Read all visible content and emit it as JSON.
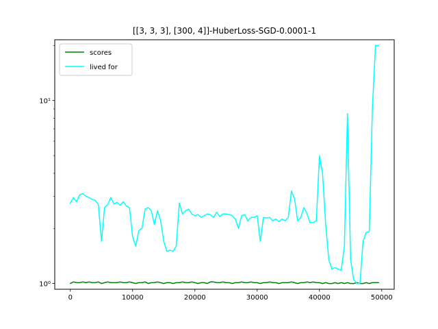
{
  "chart_data": {
    "type": "line",
    "title": "[[3, 3, 3], [300, 4]]-HuberLoss-SGD-0.0001-1",
    "xlabel": "",
    "ylabel": "",
    "xlim": [
      -2500,
      52000
    ],
    "ylim": [
      0.93,
      21.5
    ],
    "yscale": "log",
    "x_ticks": [
      0,
      10000,
      20000,
      30000,
      40000,
      50000
    ],
    "x_tick_labels": [
      "0",
      "10000",
      "20000",
      "30000",
      "40000",
      "50000"
    ],
    "y_ticks": [
      1,
      10
    ],
    "y_tick_labels": [
      "10⁰",
      "10¹"
    ],
    "grid": false,
    "legend_position": "top-left",
    "legend": [
      "scores",
      "lived for"
    ],
    "series": [
      {
        "name": "scores",
        "color": "#008000",
        "x": [
          0,
          500,
          1000,
          1500,
          2000,
          2500,
          3000,
          3500,
          4000,
          4500,
          5000,
          5500,
          6000,
          6500,
          7000,
          7500,
          8000,
          8500,
          9000,
          9500,
          10000,
          10500,
          11000,
          11500,
          12000,
          12500,
          13000,
          13500,
          14000,
          14500,
          15000,
          15500,
          16000,
          16500,
          17000,
          17500,
          18000,
          18500,
          19000,
          19500,
          20000,
          20500,
          21000,
          21500,
          22000,
          22500,
          23000,
          23500,
          24000,
          24500,
          25000,
          25500,
          26000,
          26500,
          27000,
          27500,
          28000,
          28500,
          29000,
          29500,
          30000,
          30500,
          31000,
          31500,
          32000,
          32500,
          33000,
          33500,
          34000,
          34500,
          35000,
          35500,
          36000,
          36500,
          37000,
          37500,
          38000,
          38500,
          39000,
          39500,
          40000,
          40500,
          41000,
          41500,
          42000,
          42500,
          43000,
          43500,
          44000,
          44500,
          45000,
          45500,
          46000,
          46500,
          47000,
          47500,
          48000,
          48500,
          49000,
          49500
        ],
        "values": [
          1.0,
          1.02,
          1.01,
          1.01,
          1.02,
          1.01,
          1.02,
          1.01,
          1.01,
          1.02,
          1.0,
          1.01,
          1.02,
          1.01,
          1.01,
          1.01,
          1.02,
          1.01,
          1.01,
          1.02,
          1.01,
          1.0,
          1.01,
          1.01,
          1.02,
          1.0,
          1.01,
          1.01,
          1.02,
          1.01,
          1.0,
          1.01,
          1.01,
          1.0,
          1.01,
          1.01,
          1.02,
          1.01,
          1.01,
          1.02,
          1.01,
          1.0,
          1.01,
          1.01,
          1.0,
          1.02,
          1.02,
          1.01,
          1.01,
          1.02,
          1.01,
          1.01,
          1.0,
          1.01,
          1.01,
          1.02,
          1.01,
          1.01,
          1.02,
          1.01,
          1.01,
          1.0,
          1.01,
          1.01,
          1.02,
          1.01,
          1.01,
          1.0,
          1.01,
          1.01,
          1.01,
          1.02,
          1.01,
          1.0,
          1.01,
          1.01,
          1.02,
          1.01,
          1.02,
          1.01,
          1.01,
          1.0,
          1.01,
          1.0,
          1.0,
          1.01,
          1.0,
          1.01,
          1.0,
          1.01,
          1.0,
          1.0,
          1.01,
          1.0,
          1.0,
          1.01,
          1.0,
          1.01,
          1.01,
          1.01
        ]
      },
      {
        "name": "lived for",
        "color": "#00ffff",
        "x": [
          0,
          500,
          1000,
          1500,
          2000,
          2500,
          3000,
          3500,
          4000,
          4500,
          5000,
          5500,
          6000,
          6500,
          7000,
          7500,
          8000,
          8500,
          9000,
          9500,
          10000,
          10500,
          11000,
          11500,
          12000,
          12500,
          13000,
          13500,
          14000,
          14500,
          15000,
          15500,
          16000,
          16500,
          17000,
          17500,
          18000,
          18500,
          19000,
          19500,
          20000,
          20500,
          21000,
          21500,
          22000,
          22500,
          23000,
          23500,
          24000,
          24500,
          25000,
          25500,
          26000,
          26500,
          27000,
          27500,
          28000,
          28500,
          29000,
          29500,
          30000,
          30500,
          31000,
          31500,
          32000,
          32500,
          33000,
          33500,
          34000,
          34500,
          35000,
          35500,
          36000,
          36500,
          37000,
          37500,
          38000,
          38500,
          39000,
          39500,
          40000,
          40500,
          41000,
          41500,
          42000,
          42500,
          43000,
          43500,
          44000,
          44500,
          45000,
          45500,
          46000,
          46500,
          47000,
          47500,
          48000,
          48500,
          49000,
          49500
        ],
        "values": [
          2.75,
          2.95,
          2.8,
          3.05,
          3.1,
          3.0,
          2.95,
          2.88,
          2.85,
          2.7,
          1.7,
          2.6,
          2.7,
          2.95,
          2.72,
          2.78,
          2.68,
          2.8,
          2.65,
          2.6,
          1.8,
          1.6,
          1.95,
          2.0,
          2.55,
          2.6,
          2.5,
          2.1,
          2.5,
          2.2,
          1.7,
          1.5,
          1.52,
          1.5,
          1.6,
          2.75,
          2.4,
          2.5,
          2.55,
          2.4,
          2.35,
          2.38,
          2.3,
          2.35,
          2.4,
          2.38,
          2.3,
          2.45,
          2.32,
          2.4,
          2.4,
          2.38,
          2.35,
          2.25,
          2.0,
          2.35,
          2.38,
          2.2,
          2.3,
          2.3,
          2.35,
          1.7,
          2.3,
          2.28,
          2.3,
          2.2,
          2.25,
          2.18,
          2.25,
          2.2,
          2.3,
          3.2,
          2.9,
          2.2,
          2.3,
          2.6,
          2.4,
          2.15,
          2.15,
          2.2,
          5.0,
          4.0,
          2.1,
          1.35,
          1.2,
          1.22,
          1.2,
          1.18,
          1.6,
          8.5,
          1.35,
          1.05,
          1.0,
          1.0,
          1.7,
          1.9,
          1.92,
          9.0,
          20.0,
          20.0
        ]
      }
    ]
  }
}
